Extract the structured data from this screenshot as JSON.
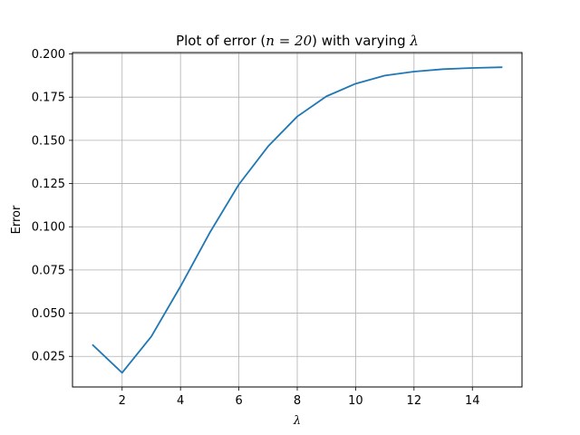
{
  "chart_data": {
    "type": "line",
    "title": {
      "prefix": "Plot of error (",
      "math": "n = 20",
      "middle": ") with varying ",
      "lambda": "λ"
    },
    "xlabel": "λ",
    "ylabel": "Error",
    "xlim": [
      0.3,
      15.7
    ],
    "ylim": [
      0.0073,
      0.2008
    ],
    "xticks": [
      2,
      4,
      6,
      8,
      10,
      12,
      14
    ],
    "yticks": [
      0.025,
      0.05,
      0.075,
      0.1,
      0.125,
      0.15,
      0.175,
      0.2
    ],
    "ytick_labels": [
      "0.025",
      "0.050",
      "0.075",
      "0.100",
      "0.125",
      "0.150",
      "0.175",
      "0.200"
    ],
    "grid": true,
    "series": [
      {
        "color": "#1f77b4",
        "x": [
          1,
          2,
          3,
          4,
          5,
          6,
          7,
          8,
          9,
          10,
          11,
          12,
          13,
          14,
          15
        ],
        "y": [
          0.0315,
          0.0155,
          0.0365,
          0.0655,
          0.0965,
          0.1245,
          0.1465,
          0.1638,
          0.1755,
          0.1828,
          0.1875,
          0.1898,
          0.1912,
          0.1919,
          0.1923
        ]
      }
    ]
  }
}
